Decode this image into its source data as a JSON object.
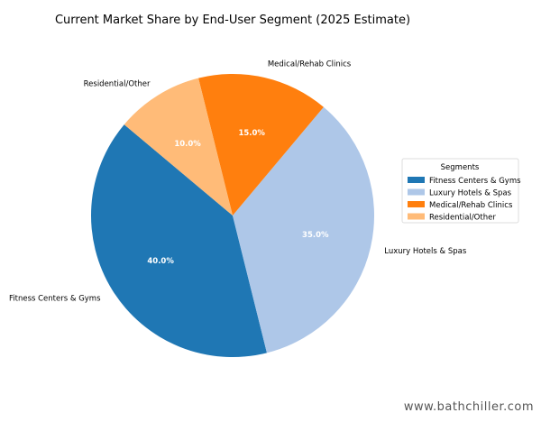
{
  "chart_data": {
    "type": "pie",
    "title": "Current Market Share by End-User Segment (2025 Estimate)",
    "categories": [
      "Fitness Centers & Gyms",
      "Luxury Hotels & Spas",
      "Medical/Rehab Clinics",
      "Residential/Other"
    ],
    "values": [
      40.0,
      35.0,
      15.0,
      10.0
    ],
    "value_labels": [
      "40.0%",
      "35.0%",
      "15.0%",
      "10.0%"
    ],
    "colors": [
      "#1f77b4",
      "#aec7e8",
      "#ff7f0e",
      "#ffbb78"
    ],
    "start_angle_deg": 140,
    "direction": "counterclockwise",
    "legend": {
      "title": "Segments",
      "placement": "right"
    }
  },
  "watermark": "www.bathchiller.com"
}
